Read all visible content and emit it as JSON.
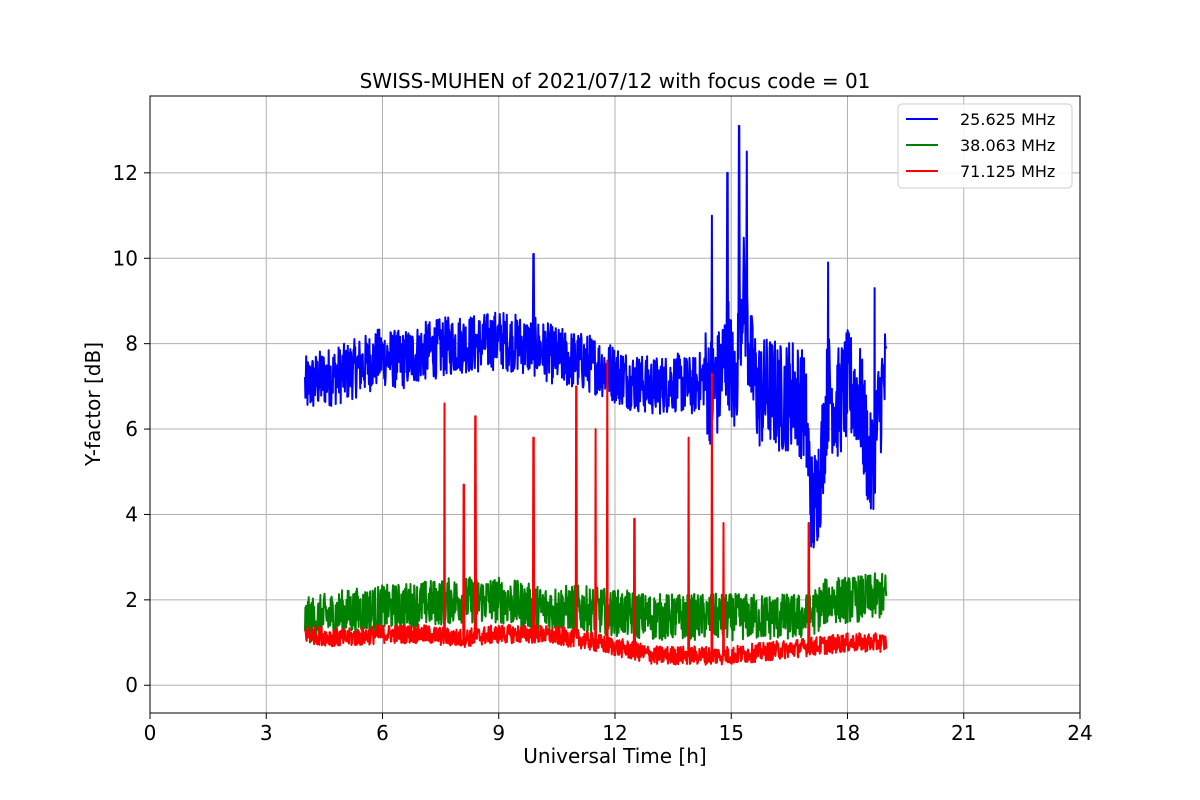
{
  "chart_data": {
    "type": "line",
    "title": "SWISS-MUHEN of 2021/07/12 with focus code = 01",
    "xlabel": "Universal Time [h]",
    "ylabel": "Y-factor [dB]",
    "xlim": [
      0,
      24
    ],
    "ylim": [
      -0.65,
      13.8
    ],
    "xticks": [
      0,
      3,
      6,
      9,
      12,
      15,
      18,
      21,
      24
    ],
    "yticks": [
      0,
      2,
      4,
      6,
      8,
      10,
      12
    ],
    "grid": true,
    "legend_position": "top-right",
    "series": [
      {
        "name": "25.625 MHz",
        "color": "#0000ff",
        "x": [
          4.0,
          4.5,
          5.0,
          5.5,
          6.0,
          6.5,
          7.0,
          7.5,
          8.0,
          8.5,
          9.0,
          9.5,
          10.0,
          10.5,
          11.0,
          11.5,
          12.0,
          12.5,
          13.0,
          13.5,
          14.0,
          14.3,
          14.5,
          14.7,
          14.9,
          15.1,
          15.3,
          15.5,
          15.7,
          16.0,
          16.3,
          16.6,
          16.9,
          17.1,
          17.3,
          17.5,
          17.7,
          18.0,
          18.3,
          18.6,
          18.9,
          19.0
        ],
        "values": [
          7.0,
          7.2,
          7.3,
          7.5,
          7.7,
          7.6,
          7.8,
          7.9,
          8.0,
          8.0,
          8.1,
          8.0,
          7.9,
          7.7,
          7.6,
          7.5,
          7.3,
          7.1,
          7.0,
          7.1,
          7.0,
          7.2,
          6.9,
          7.1,
          8.0,
          6.8,
          9.5,
          7.5,
          6.8,
          6.9,
          6.7,
          6.9,
          6.5,
          4.0,
          5.0,
          7.0,
          6.5,
          7.0,
          6.8,
          5.0,
          7.0,
          7.2
        ],
        "spikes": [
          [
            9.9,
            10.1
          ],
          [
            14.5,
            11.0
          ],
          [
            14.9,
            12.0
          ],
          [
            15.2,
            13.1
          ],
          [
            15.4,
            12.5
          ],
          [
            17.5,
            9.9
          ],
          [
            18.7,
            9.3
          ]
        ]
      },
      {
        "name": "38.063 MHz",
        "color": "#008000",
        "x": [
          4.0,
          5.0,
          6.0,
          7.0,
          8.0,
          9.0,
          10.0,
          11.0,
          12.0,
          13.0,
          14.0,
          15.0,
          16.0,
          17.0,
          17.5,
          18.0,
          19.0
        ],
        "values": [
          1.5,
          1.7,
          1.8,
          1.9,
          2.0,
          2.0,
          1.8,
          1.8,
          1.7,
          1.6,
          1.6,
          1.6,
          1.6,
          1.6,
          2.0,
          2.0,
          2.1
        ]
      },
      {
        "name": "71.125 MHz",
        "color": "#ff0000",
        "x": [
          4.0,
          5.0,
          6.0,
          7.0,
          8.0,
          9.0,
          10.0,
          11.0,
          12.0,
          13.0,
          14.0,
          15.0,
          16.0,
          17.0,
          18.0,
          19.0
        ],
        "values": [
          1.2,
          1.1,
          1.2,
          1.2,
          1.1,
          1.2,
          1.2,
          1.1,
          0.9,
          0.7,
          0.7,
          0.7,
          0.8,
          0.9,
          1.0,
          1.0
        ],
        "spikes": [
          [
            7.6,
            6.6
          ],
          [
            8.1,
            4.7
          ],
          [
            8.4,
            6.3
          ],
          [
            9.9,
            5.8
          ],
          [
            11.0,
            7.0
          ],
          [
            11.5,
            6.0
          ],
          [
            11.8,
            7.6
          ],
          [
            12.5,
            3.9
          ],
          [
            13.9,
            5.8
          ],
          [
            14.5,
            7.3
          ],
          [
            14.8,
            3.8
          ],
          [
            17.0,
            3.8
          ]
        ]
      }
    ]
  }
}
